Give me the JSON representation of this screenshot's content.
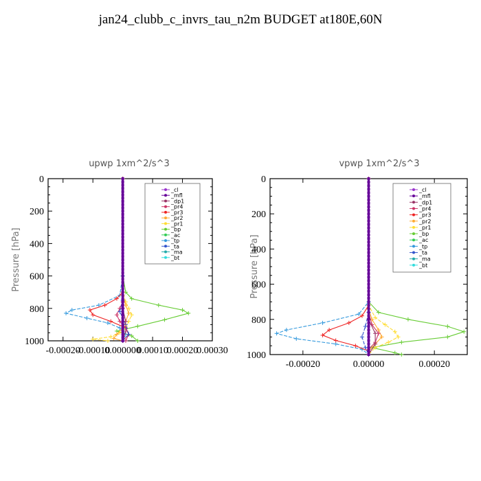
{
  "title": "jan24_clubb_c_invrs_tau_n2m  BUDGET at180E,60N",
  "colors": {
    "_cl": "#9933cc",
    "_mfl": "#660099",
    "_dp1": "#993366",
    "_pr4": "#cc3366",
    "_pr3": "#ee2222",
    "_pr2": "#ffaa33",
    "_pr1": "#ffdd33",
    "_bp": "#66cc33",
    "_ac": "#33cc55",
    "_tp": "#3399dd",
    "_ta": "#3355cc",
    "_ma": "#22aaaa",
    "_bt": "#33dddd"
  },
  "chart_data": [
    {
      "type": "line",
      "panel_title": "upwp   1xm^2/s^3",
      "ylabel": "Pressure [hPa]",
      "yticks": [
        "0",
        "200",
        "400",
        "600",
        "800",
        "1000"
      ],
      "xticks": [
        "-0.00020",
        "-0.00010",
        "0.000000",
        "0.00010",
        "0.00020",
        "0.00030"
      ],
      "xlim": [
        -0.00025,
        0.0003
      ],
      "ylim": [
        1000,
        0
      ],
      "y_reversed": true,
      "legend_position": "top-right",
      "legend": [
        "_cl",
        "_mfl",
        "_dp1",
        "_pr4",
        "_pr3",
        "_pr2",
        "_pr1",
        "_bp",
        "_ac",
        "_tp",
        "_ta",
        "_ma",
        "_bt"
      ],
      "series": [
        {
          "name": "_bp",
          "points": [
            [
              0,
              0
            ],
            [
              0,
              600
            ],
            [
              1e-05,
              700
            ],
            [
              3e-05,
              740
            ],
            [
              0.00012,
              780
            ],
            [
              0.0002,
              810
            ],
            [
              0.00022,
              830
            ],
            [
              0.00014,
              870
            ],
            [
              5e-05,
              910
            ],
            [
              -2e-05,
              940
            ],
            [
              3e-05,
              970
            ],
            [
              5e-05,
              1000
            ]
          ]
        },
        {
          "name": "_tp",
          "points": [
            [
              0,
              0
            ],
            [
              0,
              600
            ],
            [
              -1e-05,
              720
            ],
            [
              -8e-05,
              780
            ],
            [
              -0.00017,
              810
            ],
            [
              -0.00019,
              830
            ],
            [
              -0.00012,
              860
            ],
            [
              -5e-05,
              890
            ],
            [
              -1e-05,
              920
            ],
            [
              1e-05,
              960
            ],
            [
              0,
              1000
            ]
          ]
        },
        {
          "name": "_pr3",
          "points": [
            [
              0,
              0
            ],
            [
              0,
              700
            ],
            [
              -2e-05,
              740
            ],
            [
              -6e-05,
              780
            ],
            [
              -0.00011,
              810
            ],
            [
              -0.0001,
              840
            ],
            [
              -4e-05,
              880
            ],
            [
              1e-05,
              920
            ],
            [
              2e-05,
              960
            ],
            [
              0,
              1000
            ]
          ]
        },
        {
          "name": "_pr1",
          "points": [
            [
              0,
              0
            ],
            [
              0,
              700
            ],
            [
              1e-05,
              760
            ],
            [
              2e-05,
              800
            ],
            [
              3e-05,
              840
            ],
            [
              2e-05,
              880
            ],
            [
              1e-05,
              910
            ],
            [
              -1e-05,
              950
            ],
            [
              -4e-05,
              975
            ],
            [
              -0.0001,
              990
            ],
            [
              -5e-05,
              1000
            ]
          ]
        },
        {
          "name": "_pr2",
          "points": [
            [
              0,
              0
            ],
            [
              0,
              720
            ],
            [
              1e-05,
              780
            ],
            [
              2e-05,
              830
            ],
            [
              1e-05,
              880
            ],
            [
              0,
              920
            ],
            [
              -2e-05,
              960
            ],
            [
              -3e-05,
              985
            ],
            [
              0,
              1000
            ]
          ]
        },
        {
          "name": "_pr4",
          "points": [
            [
              0,
              0
            ],
            [
              0,
              760
            ],
            [
              -1e-05,
              800
            ],
            [
              -2e-05,
              840
            ],
            [
              -1e-05,
              880
            ],
            [
              1e-05,
              920
            ],
            [
              2e-05,
              960
            ],
            [
              1e-05,
              1000
            ]
          ]
        },
        {
          "name": "_dp1",
          "points": [
            [
              0,
              0
            ],
            [
              0,
              800
            ],
            [
              1e-05,
              880
            ],
            [
              1e-05,
              940
            ],
            [
              0,
              1000
            ]
          ]
        },
        {
          "name": "_ta",
          "points": [
            [
              0,
              0
            ],
            [
              0,
              750
            ],
            [
              -1e-05,
              820
            ],
            [
              1e-05,
              900
            ],
            [
              2e-05,
              960
            ],
            [
              0,
              1000
            ]
          ]
        },
        {
          "name": "_cl",
          "points": [
            [
              0,
              0
            ],
            [
              0,
              1000
            ]
          ]
        },
        {
          "name": "_mfl",
          "points": [
            [
              0,
              0
            ],
            [
              0,
              1000
            ]
          ]
        }
      ]
    },
    {
      "type": "line",
      "panel_title": "vpwp   1xm^2/s^3",
      "ylabel": "Pressure [hPa]",
      "yticks": [
        "0",
        "200",
        "400",
        "600",
        "800",
        "1000"
      ],
      "xticks": [
        "-0.00020",
        "0.00000",
        "0.00020"
      ],
      "xlim": [
        -0.0003,
        0.0003
      ],
      "ylim": [
        1000,
        0
      ],
      "y_reversed": true,
      "legend_position": "top-right",
      "legend": [
        "_cl",
        "_mfl",
        "_dp1",
        "_pr4",
        "_pr3",
        "_pr2",
        "_pr1",
        "_bp",
        "_ac",
        "_tp",
        "_ta",
        "_ma",
        "_bt"
      ],
      "series": [
        {
          "name": "_bp",
          "points": [
            [
              0,
              0
            ],
            [
              0,
              700
            ],
            [
              3e-05,
              760
            ],
            [
              0.00012,
              800
            ],
            [
              0.00024,
              840
            ],
            [
              0.00029,
              870
            ],
            [
              0.00024,
              900
            ],
            [
              0.0001,
              930
            ],
            [
              1e-05,
              960
            ],
            [
              8e-05,
              990
            ],
            [
              0.0001,
              1000
            ]
          ]
        },
        {
          "name": "_tp",
          "points": [
            [
              0,
              0
            ],
            [
              0,
              700
            ],
            [
              -3e-05,
              770
            ],
            [
              -0.00014,
              820
            ],
            [
              -0.00025,
              860
            ],
            [
              -0.00028,
              880
            ],
            [
              -0.00022,
              910
            ],
            [
              -0.0001,
              940
            ],
            [
              -2e-05,
              970
            ],
            [
              0,
              1000
            ]
          ]
        },
        {
          "name": "_pr3",
          "points": [
            [
              0,
              0
            ],
            [
              0,
              720
            ],
            [
              -2e-05,
              780
            ],
            [
              -6e-05,
              820
            ],
            [
              -0.00012,
              860
            ],
            [
              -0.00014,
              890
            ],
            [
              -0.0001,
              920
            ],
            [
              -4e-05,
              950
            ],
            [
              0,
              980
            ],
            [
              0,
              1000
            ]
          ]
        },
        {
          "name": "_pr1",
          "points": [
            [
              0,
              0
            ],
            [
              0,
              720
            ],
            [
              2e-05,
              790
            ],
            [
              5e-05,
              830
            ],
            [
              8e-05,
              870
            ],
            [
              9e-05,
              900
            ],
            [
              6e-05,
              930
            ],
            [
              2e-05,
              960
            ],
            [
              0,
              1000
            ]
          ]
        },
        {
          "name": "_pr2",
          "points": [
            [
              0,
              0
            ],
            [
              0,
              740
            ],
            [
              1e-05,
              800
            ],
            [
              3e-05,
              860
            ],
            [
              4e-05,
              900
            ],
            [
              2e-05,
              940
            ],
            [
              0,
              980
            ],
            [
              0,
              1000
            ]
          ]
        },
        {
          "name": "_pr4",
          "points": [
            [
              0,
              0
            ],
            [
              0,
              760
            ],
            [
              1e-05,
              830
            ],
            [
              3e-05,
              880
            ],
            [
              2e-05,
              930
            ],
            [
              0,
              970
            ],
            [
              0,
              1000
            ]
          ]
        },
        {
          "name": "_dp1",
          "points": [
            [
              0,
              0
            ],
            [
              0,
              800
            ],
            [
              2e-05,
              880
            ],
            [
              2e-05,
              940
            ],
            [
              0,
              1000
            ]
          ]
        },
        {
          "name": "_ta",
          "points": [
            [
              0,
              0
            ],
            [
              0,
              760
            ],
            [
              -1e-05,
              840
            ],
            [
              -2e-05,
              900
            ],
            [
              -1e-05,
              960
            ],
            [
              0,
              1000
            ]
          ]
        },
        {
          "name": "_cl",
          "points": [
            [
              0,
              0
            ],
            [
              0,
              1000
            ]
          ]
        },
        {
          "name": "_mfl",
          "points": [
            [
              0,
              0
            ],
            [
              0,
              1000
            ]
          ]
        }
      ]
    }
  ]
}
